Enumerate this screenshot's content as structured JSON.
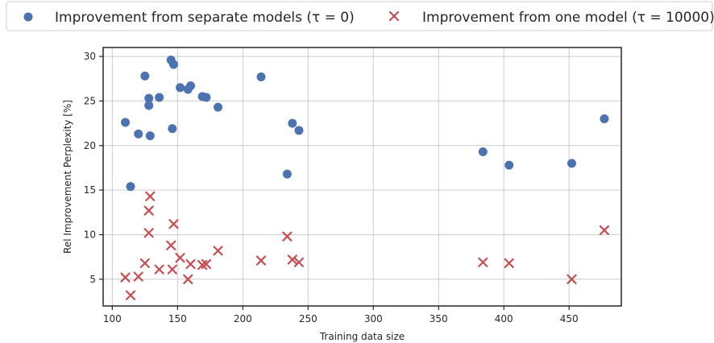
{
  "chart_data": {
    "type": "scatter",
    "xlabel": "Training data size",
    "ylabel": "Rel Improvement Perplexity [%]",
    "xlim": [
      93,
      490
    ],
    "ylim": [
      2,
      31
    ],
    "xticks": [
      100,
      150,
      200,
      250,
      300,
      350,
      400,
      450
    ],
    "yticks": [
      5,
      10,
      15,
      20,
      25,
      30
    ],
    "grid": true,
    "legend_placement": "top, outside plot, two columns",
    "series": [
      {
        "name": "Improvement from separate models (τ = 0)",
        "marker": "circle",
        "color": "#4c72b0",
        "points": [
          {
            "x": 110,
            "y": 22.6
          },
          {
            "x": 114,
            "y": 15.4
          },
          {
            "x": 120,
            "y": 21.3
          },
          {
            "x": 125,
            "y": 27.8
          },
          {
            "x": 128,
            "y": 25.3
          },
          {
            "x": 128,
            "y": 24.5
          },
          {
            "x": 129,
            "y": 21.1
          },
          {
            "x": 136,
            "y": 25.4
          },
          {
            "x": 145,
            "y": 29.6
          },
          {
            "x": 146,
            "y": 21.9
          },
          {
            "x": 147,
            "y": 29.1
          },
          {
            "x": 152,
            "y": 26.5
          },
          {
            "x": 158,
            "y": 26.3
          },
          {
            "x": 160,
            "y": 26.7
          },
          {
            "x": 169,
            "y": 25.5
          },
          {
            "x": 172,
            "y": 25.4
          },
          {
            "x": 181,
            "y": 24.3
          },
          {
            "x": 214,
            "y": 27.7
          },
          {
            "x": 234,
            "y": 16.8
          },
          {
            "x": 238,
            "y": 22.5
          },
          {
            "x": 243,
            "y": 21.7
          },
          {
            "x": 384,
            "y": 19.3
          },
          {
            "x": 404,
            "y": 17.8
          },
          {
            "x": 452,
            "y": 18.0
          },
          {
            "x": 477,
            "y": 23.0
          }
        ]
      },
      {
        "name": "Improvement from one model (τ = 10000)",
        "marker": "x",
        "color": "#c44e52",
        "points": [
          {
            "x": 110,
            "y": 5.2
          },
          {
            "x": 114,
            "y": 3.2
          },
          {
            "x": 120,
            "y": 5.3
          },
          {
            "x": 125,
            "y": 6.8
          },
          {
            "x": 128,
            "y": 10.2
          },
          {
            "x": 128,
            "y": 12.7
          },
          {
            "x": 129,
            "y": 14.3
          },
          {
            "x": 136,
            "y": 6.1
          },
          {
            "x": 145,
            "y": 8.8
          },
          {
            "x": 146,
            "y": 6.1
          },
          {
            "x": 147,
            "y": 11.2
          },
          {
            "x": 152,
            "y": 7.4
          },
          {
            "x": 158,
            "y": 5.0
          },
          {
            "x": 160,
            "y": 6.7
          },
          {
            "x": 169,
            "y": 6.6
          },
          {
            "x": 172,
            "y": 6.7
          },
          {
            "x": 181,
            "y": 8.2
          },
          {
            "x": 214,
            "y": 7.1
          },
          {
            "x": 234,
            "y": 9.8
          },
          {
            "x": 238,
            "y": 7.2
          },
          {
            "x": 243,
            "y": 6.9
          },
          {
            "x": 384,
            "y": 6.9
          },
          {
            "x": 404,
            "y": 6.8
          },
          {
            "x": 452,
            "y": 5.0
          },
          {
            "x": 477,
            "y": 10.5
          }
        ]
      }
    ]
  },
  "colors": {
    "series_blue": "#4c72b0",
    "series_red": "#c44e52",
    "grid": "#cccccc",
    "axes": "#262626"
  }
}
